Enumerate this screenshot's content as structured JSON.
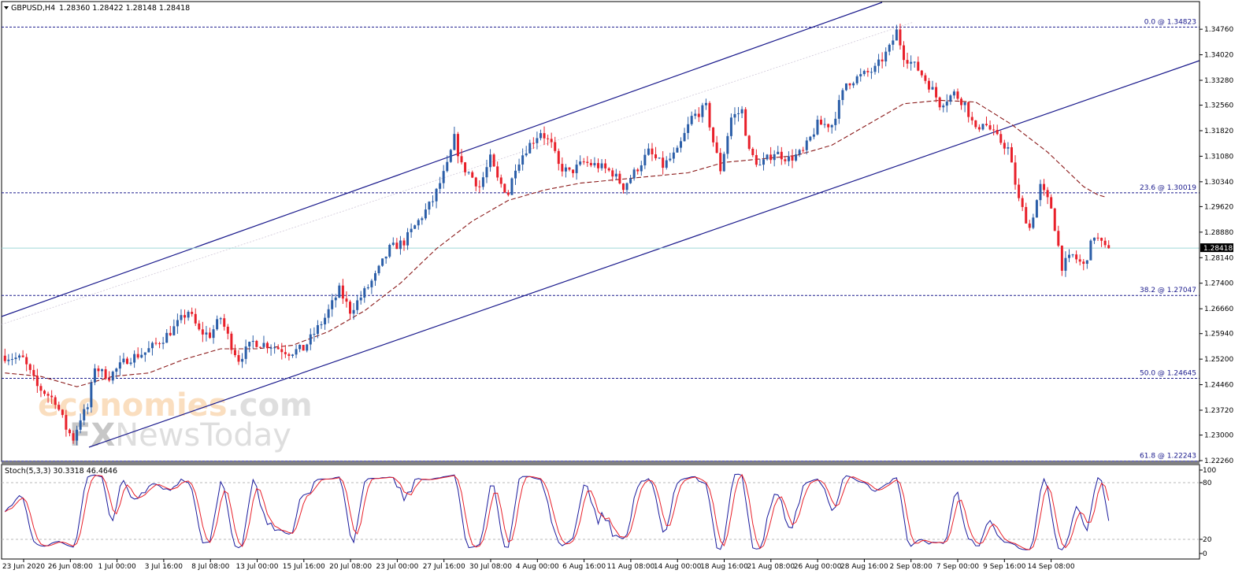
{
  "header": {
    "symbol": "GBPUSD,H4",
    "ohlc": "1.28360 1.28422 1.28148 1.28418"
  },
  "price_axis": {
    "ticks": [
      "1.34760",
      "1.34020",
      "1.33280",
      "1.32560",
      "1.31820",
      "1.31080",
      "1.30340",
      "1.29620",
      "1.28880",
      "1.28140",
      "1.27400",
      "1.26660",
      "1.25940",
      "1.25200",
      "1.24460",
      "1.23720",
      "1.23000",
      "1.22260"
    ],
    "current_price": "1.28418"
  },
  "fibonacci": [
    {
      "label": "0.0 @ 1.34823",
      "price": 1.34823
    },
    {
      "label": "23.6 @ 1.30019",
      "price": 1.30019
    },
    {
      "label": "38.2 @ 1.27047",
      "price": 1.27047
    },
    {
      "label": "50.0 @ 1.24645",
      "price": 1.24645
    },
    {
      "label": "61.8 @ 1.22243",
      "price": 1.22243
    }
  ],
  "stochastic": {
    "header": "Stoch(5,3,3) 30.3318 46.4646",
    "ticks": [
      "100",
      "80",
      "20",
      "0"
    ]
  },
  "time_axis": [
    "23 Jun 2020",
    "26 Jun 08:00",
    "1 Jul 00:00",
    "3 Jul 16:00",
    "8 Jul 08:00",
    "13 Jul 00:00",
    "15 Jul 16:00",
    "20 Jul 08:00",
    "23 Jul 00:00",
    "27 Jul 16:00",
    "30 Jul 08:00",
    "4 Aug 00:00",
    "6 Aug 16:00",
    "11 Aug 08:00",
    "14 Aug 00:00",
    "18 Aug 16:00",
    "21 Aug 08:00",
    "26 Aug 00:00",
    "28 Aug 16:00",
    "2 Sep 08:00",
    "7 Sep 00:00",
    "9 Sep 16:00",
    "14 Sep 08:00"
  ],
  "watermark": {
    "line1a": "econo",
    "line1b": "mies",
    "line1c": ".com",
    "line2a": "FX",
    "line2b": "NewsToday"
  },
  "colors": {
    "bull": "#2b5ea8",
    "bear": "#e8202a",
    "ma": "#8b1a1a",
    "channel": "#1a1a8c",
    "fib": "#1a1a8c",
    "stoch_main": "#1a1a9c",
    "stoch_signal": "#e8202a",
    "price_line": "#9fd8d8"
  },
  "chart_data": {
    "type": "candlestick",
    "symbol": "GBPUSD",
    "timeframe": "H4",
    "ylim": [
      1.2226,
      1.349
    ],
    "path": [
      [
        0,
        1.253
      ],
      [
        6,
        1.252
      ],
      [
        10,
        1.244
      ],
      [
        15,
        1.24
      ],
      [
        18,
        1.232
      ],
      [
        20,
        1.229
      ],
      [
        22,
        1.235
      ],
      [
        24,
        1.238
      ],
      [
        26,
        1.25
      ],
      [
        28,
        1.248
      ],
      [
        30,
        1.247
      ],
      [
        35,
        1.252
      ],
      [
        40,
        1.254
      ],
      [
        45,
        1.258
      ],
      [
        48,
        1.261
      ],
      [
        52,
        1.266
      ],
      [
        55,
        1.26
      ],
      [
        58,
        1.259
      ],
      [
        61,
        1.264
      ],
      [
        64,
        1.256
      ],
      [
        66,
        1.252
      ],
      [
        70,
        1.257
      ],
      [
        75,
        1.256
      ],
      [
        80,
        1.254
      ],
      [
        84,
        1.255
      ],
      [
        90,
        1.264
      ],
      [
        94,
        1.272
      ],
      [
        97,
        1.266
      ],
      [
        100,
        1.27
      ],
      [
        104,
        1.276
      ],
      [
        108,
        1.284
      ],
      [
        112,
        1.286
      ],
      [
        116,
        1.292
      ],
      [
        120,
        1.298
      ],
      [
        124,
        1.308
      ],
      [
        126,
        1.316
      ],
      [
        128,
        1.308
      ],
      [
        130,
        1.306
      ],
      [
        133,
        1.302
      ],
      [
        136,
        1.31
      ],
      [
        138,
        1.304
      ],
      [
        141,
        1.3
      ],
      [
        143,
        1.308
      ],
      [
        146,
        1.313
      ],
      [
        150,
        1.318
      ],
      [
        153,
        1.314
      ],
      [
        155,
        1.308
      ],
      [
        158,
        1.306
      ],
      [
        162,
        1.309
      ],
      [
        166,
        1.308
      ],
      [
        170,
        1.306
      ],
      [
        173,
        1.302
      ],
      [
        176,
        1.306
      ],
      [
        180,
        1.312
      ],
      [
        184,
        1.308
      ],
      [
        188,
        1.312
      ],
      [
        192,
        1.322
      ],
      [
        196,
        1.325
      ],
      [
        198,
        1.315
      ],
      [
        200,
        1.307
      ],
      [
        203,
        1.322
      ],
      [
        206,
        1.324
      ],
      [
        208,
        1.312
      ],
      [
        211,
        1.308
      ],
      [
        215,
        1.312
      ],
      [
        219,
        1.31
      ],
      [
        223,
        1.312
      ],
      [
        227,
        1.32
      ],
      [
        231,
        1.32
      ],
      [
        235,
        1.332
      ],
      [
        239,
        1.334
      ],
      [
        243,
        1.336
      ],
      [
        247,
        1.342
      ],
      [
        249,
        1.347
      ],
      [
        251,
        1.34
      ],
      [
        255,
        1.336
      ],
      [
        259,
        1.33
      ],
      [
        261,
        1.326
      ],
      [
        265,
        1.329
      ],
      [
        268,
        1.326
      ],
      [
        271,
        1.318
      ],
      [
        273,
        1.321
      ],
      [
        277,
        1.316
      ],
      [
        280,
        1.313
      ],
      [
        283,
        1.298
      ],
      [
        286,
        1.29
      ],
      [
        289,
        1.302
      ],
      [
        292,
        1.296
      ],
      [
        295,
        1.279
      ],
      [
        298,
        1.282
      ],
      [
        301,
        1.279
      ],
      [
        304,
        1.288
      ],
      [
        307,
        1.284
      ]
    ],
    "ma_series": [
      [
        0,
        1.248
      ],
      [
        10,
        1.247
      ],
      [
        20,
        1.244
      ],
      [
        30,
        1.247
      ],
      [
        40,
        1.248
      ],
      [
        50,
        1.252
      ],
      [
        60,
        1.255
      ],
      [
        70,
        1.255
      ],
      [
        80,
        1.256
      ],
      [
        90,
        1.26
      ],
      [
        100,
        1.266
      ],
      [
        110,
        1.274
      ],
      [
        120,
        1.284
      ],
      [
        130,
        1.292
      ],
      [
        140,
        1.298
      ],
      [
        150,
        1.301
      ],
      [
        160,
        1.303
      ],
      [
        170,
        1.304
      ],
      [
        180,
        1.305
      ],
      [
        190,
        1.306
      ],
      [
        200,
        1.309
      ],
      [
        210,
        1.31
      ],
      [
        220,
        1.311
      ],
      [
        230,
        1.314
      ],
      [
        240,
        1.32
      ],
      [
        250,
        1.326
      ],
      [
        260,
        1.327
      ],
      [
        270,
        1.3265
      ],
      [
        280,
        1.32
      ],
      [
        290,
        1.312
      ],
      [
        300,
        1.302
      ],
      [
        305,
        1.299
      ]
    ],
    "bar_count": 308
  }
}
